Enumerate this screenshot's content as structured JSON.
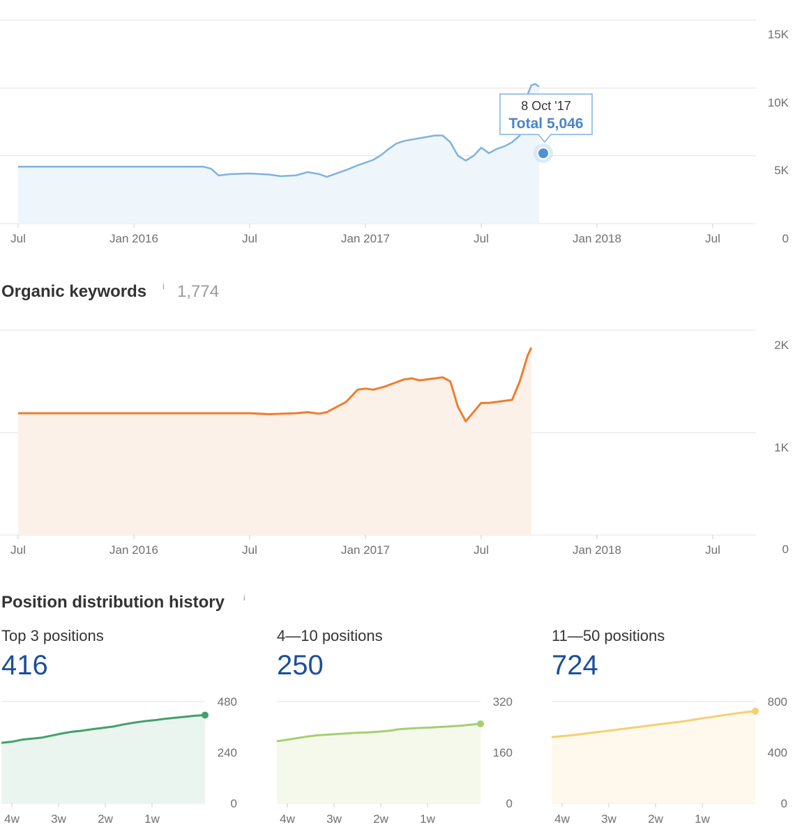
{
  "charts": {
    "traffic": {
      "type": "area",
      "color": "#7fb2e0",
      "fill": "#eef5fb",
      "ylim": [
        0,
        15000
      ],
      "y_ticks": [
        "15K",
        "10K",
        "5K",
        "0"
      ],
      "x_ticks": [
        "Jul",
        "Jan 2016",
        "Jul",
        "Jan 2017",
        "Jul",
        "Jan 2018",
        "Jul"
      ],
      "tooltip": {
        "date": "8 Oct '17",
        "total": "Total 5,046"
      },
      "points": [
        [
          0,
          4200
        ],
        [
          48,
          4200
        ],
        [
          50,
          4050
        ],
        [
          52,
          3550
        ],
        [
          55,
          3650
        ],
        [
          60,
          3700
        ],
        [
          65,
          3620
        ],
        [
          68,
          3500
        ],
        [
          72,
          3560
        ],
        [
          75,
          3800
        ],
        [
          78,
          3650
        ],
        [
          80,
          3450
        ],
        [
          85,
          3950
        ],
        [
          88,
          4300
        ],
        [
          92,
          4700
        ],
        [
          94,
          5046
        ],
        [
          96,
          5500
        ],
        [
          98,
          5900
        ],
        [
          100,
          6100
        ],
        [
          104,
          6300
        ],
        [
          108,
          6500
        ],
        [
          110,
          6500
        ],
        [
          112,
          6000
        ],
        [
          114,
          5000
        ],
        [
          116,
          4650
        ],
        [
          118,
          5000
        ],
        [
          120,
          5600
        ],
        [
          122,
          5200
        ],
        [
          124,
          5500
        ],
        [
          126,
          5700
        ],
        [
          128,
          6000
        ],
        [
          130,
          6500
        ],
        [
          131,
          8000
        ],
        [
          132,
          9500
        ],
        [
          133,
          10200
        ],
        [
          134,
          10300
        ],
        [
          135,
          10100
        ]
      ]
    },
    "organic": {
      "title": "Organic keywords",
      "info": "i",
      "value": "1,774",
      "type": "area",
      "color": "#ef7d2f",
      "fill": "#fcf1e8",
      "ylim": [
        0,
        2000
      ],
      "y_ticks": [
        "2K",
        "1K",
        "0"
      ],
      "x_ticks": [
        "Jul",
        "Jan 2016",
        "Jul",
        "Jan 2017",
        "Jul",
        "Jan 2018",
        "Jul"
      ],
      "points": [
        [
          0,
          1190
        ],
        [
          60,
          1190
        ],
        [
          65,
          1180
        ],
        [
          72,
          1190
        ],
        [
          75,
          1200
        ],
        [
          78,
          1185
        ],
        [
          80,
          1200
        ],
        [
          82,
          1240
        ],
        [
          85,
          1300
        ],
        [
          88,
          1420
        ],
        [
          90,
          1430
        ],
        [
          92,
          1420
        ],
        [
          95,
          1450
        ],
        [
          100,
          1520
        ],
        [
          102,
          1530
        ],
        [
          104,
          1510
        ],
        [
          108,
          1530
        ],
        [
          110,
          1540
        ],
        [
          112,
          1500
        ],
        [
          114,
          1250
        ],
        [
          116,
          1110
        ],
        [
          118,
          1200
        ],
        [
          120,
          1290
        ],
        [
          122,
          1290
        ],
        [
          124,
          1300
        ],
        [
          126,
          1310
        ],
        [
          128,
          1320
        ],
        [
          130,
          1500
        ],
        [
          132,
          1750
        ],
        [
          133,
          1830
        ]
      ]
    },
    "position": {
      "title": "Position distribution history",
      "info": "i",
      "x_ticks": [
        "4w",
        "3w",
        "2w",
        "1w"
      ],
      "panels": [
        {
          "label": "Top 3 positions",
          "value": "416",
          "color": "#42a06a",
          "fill": "#ebf5ef",
          "ylim": [
            0,
            480
          ],
          "y_ticks": [
            "480",
            "240",
            "0"
          ],
          "values": [
            285,
            290,
            300,
            305,
            310,
            320,
            330,
            338,
            343,
            350,
            356,
            362,
            372,
            380,
            387,
            392,
            398,
            403,
            408,
            413,
            416
          ]
        },
        {
          "label": "4—10 positions",
          "value": "250",
          "color": "#a5cf6f",
          "fill": "#f4f9ec",
          "ylim": [
            0,
            320
          ],
          "y_ticks": [
            "320",
            "160",
            "0"
          ],
          "values": [
            195,
            200,
            205,
            210,
            214,
            216,
            218,
            220,
            222,
            223,
            225,
            228,
            233,
            235,
            237,
            238,
            240,
            242,
            244,
            247,
            250
          ]
        },
        {
          "label": "11—50 positions",
          "value": "724",
          "color": "#f5cf72",
          "fill": "#fef9ec",
          "ylim": [
            0,
            800
          ],
          "y_ticks": [
            "800",
            "400",
            "0"
          ],
          "values": [
            520,
            528,
            535,
            545,
            555,
            565,
            575,
            585,
            595,
            605,
            615,
            625,
            635,
            645,
            658,
            670,
            682,
            694,
            706,
            716,
            724
          ]
        }
      ]
    }
  }
}
